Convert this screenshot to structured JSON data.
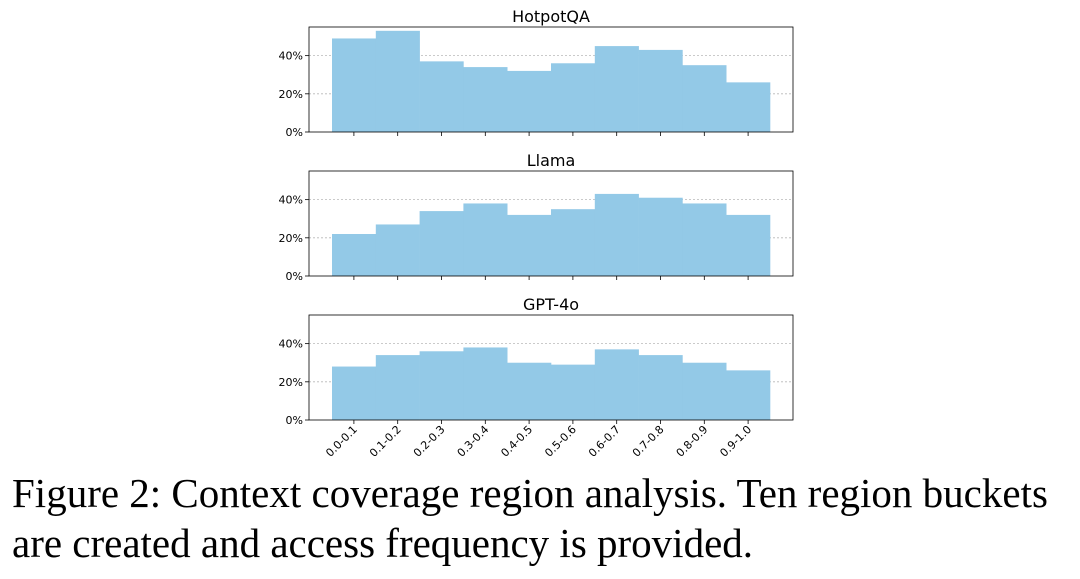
{
  "chart_data": [
    {
      "type": "bar",
      "title": "HotpotQA",
      "categories": [
        "0.0-0.1",
        "0.1-0.2",
        "0.2-0.3",
        "0.3-0.4",
        "0.4-0.5",
        "0.5-0.6",
        "0.6-0.7",
        "0.7-0.8",
        "0.8-0.9",
        "0.9-1.0"
      ],
      "values": [
        49,
        53,
        37,
        34,
        32,
        36,
        45,
        43,
        35,
        26
      ],
      "ylim": [
        0,
        55
      ],
      "yticks": [
        "0%",
        "20%",
        "40%"
      ],
      "color": "#93c9e7",
      "grid": true
    },
    {
      "type": "bar",
      "title": "Llama",
      "categories": [
        "0.0-0.1",
        "0.1-0.2",
        "0.2-0.3",
        "0.3-0.4",
        "0.4-0.5",
        "0.5-0.6",
        "0.6-0.7",
        "0.7-0.8",
        "0.8-0.9",
        "0.9-1.0"
      ],
      "values": [
        22,
        27,
        34,
        38,
        32,
        35,
        43,
        41,
        38,
        32
      ],
      "ylim": [
        0,
        55
      ],
      "yticks": [
        "0%",
        "20%",
        "40%"
      ],
      "color": "#93c9e7",
      "grid": true
    },
    {
      "type": "bar",
      "title": "GPT-4o",
      "categories": [
        "0.0-0.1",
        "0.1-0.2",
        "0.2-0.3",
        "0.3-0.4",
        "0.4-0.5",
        "0.5-0.6",
        "0.6-0.7",
        "0.7-0.8",
        "0.8-0.9",
        "0.9-1.0"
      ],
      "values": [
        28,
        34,
        36,
        38,
        30,
        29,
        37,
        34,
        30,
        26
      ],
      "ylim": [
        0,
        55
      ],
      "yticks": [
        "0%",
        "20%",
        "40%"
      ],
      "color": "#93c9e7",
      "grid": true
    }
  ],
  "caption": "Figure 2:  Context coverage region analysis. Ten region buckets are created and access frequency is provided."
}
